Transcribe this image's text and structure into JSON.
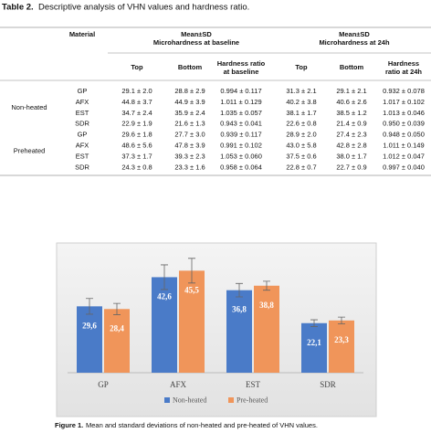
{
  "table": {
    "label": "Table 2.",
    "title": "Descriptive analysis of VHN values and hardness ratio.",
    "header": {
      "material": "Material",
      "groups": [
        [
          "Mean±SD",
          "Microhardness at baseline"
        ],
        [
          "Mean±SD",
          "Microhardness at 24h"
        ]
      ],
      "columns": [
        [
          "Top"
        ],
        [
          "Bottom"
        ],
        [
          "Hardness ratio",
          "at baseline"
        ],
        [
          "Top"
        ],
        [
          "Bottom"
        ],
        [
          "Hardness",
          "ratio at 24h"
        ]
      ]
    },
    "sections": [
      {
        "label": "Non-heated",
        "rows": [
          [
            "GP",
            "29.1 ± 2.0",
            "28.8 ± 2.9",
            "0.994 ± 0.117",
            "31.3 ± 2.1",
            "29.1 ± 2.1",
            "0.932 ± 0.078"
          ],
          [
            "AFX",
            "44.8 ± 3.7",
            "44.9 ± 3.9",
            "1.011 ± 0.129",
            "40.2 ± 3.8",
            "40.6 ± 2.6",
            "1.017 ± 0.102"
          ],
          [
            "EST",
            "34.7 ± 2.4",
            "35.9 ± 2.4",
            "1.035 ± 0.057",
            "38.1 ± 1.7",
            "38.5 ± 1.2",
            "1.013 ± 0.046"
          ],
          [
            "SDR",
            "22.9 ± 1.9",
            "21.6 ± 1.3",
            "0.943 ± 0.041",
            "22.6 ± 0.8",
            "21.4 ± 0.9",
            "0.950 ± 0.039"
          ]
        ]
      },
      {
        "label": "Preheated",
        "rows": [
          [
            "GP",
            "29.6 ± 1.8",
            "27.7 ± 3.0",
            "0.939 ± 0.117",
            "28.9 ± 2.0",
            "27.4 ± 2.3",
            "0.948 ± 0.050"
          ],
          [
            "AFX",
            "48.6 ± 5.6",
            "47.8 ± 3.9",
            "0.991 ± 0.102",
            "43.0 ± 5.8",
            "42.8 ± 2.8",
            "1.011 ± 0.149"
          ],
          [
            "EST",
            "37.3 ± 1.7",
            "39.3 ± 2.3",
            "1.053 ± 0.060",
            "37.5 ± 0.6",
            "38.0 ± 1.7",
            "1.012 ± 0.047"
          ],
          [
            "SDR",
            "24.3 ± 0.8",
            "23.3 ± 1.6",
            "0.958 ± 0.064",
            "22.8 ± 0.7",
            "22.7 ± 0.9",
            "0.997 ± 0.040"
          ]
        ]
      }
    ]
  },
  "figure": {
    "label": "Figure 1.",
    "caption": "Mean and standard deviations of non-heated and pre-heated of VHN values.",
    "chart_data": {
      "type": "bar",
      "categories": [
        "GP",
        "AFX",
        "EST",
        "SDR"
      ],
      "ylim": [
        0,
        55
      ],
      "series": [
        {
          "name": "Non-heated",
          "color": "#4a7bc8",
          "values": [
            29.6,
            42.6,
            36.8,
            22.1
          ],
          "value_labels": [
            "29,6",
            "42,6",
            "36,8",
            "22,1"
          ],
          "errors": [
            3.5,
            5.5,
            3.0,
            1.5
          ]
        },
        {
          "name": "Pre-heated",
          "color": "#f0955a",
          "values": [
            28.4,
            45.5,
            38.8,
            23.3
          ],
          "value_labels": [
            "28,4",
            "45,5",
            "38,8",
            "23,3"
          ],
          "errors": [
            2.5,
            5.5,
            2.0,
            1.5
          ]
        }
      ]
    }
  }
}
